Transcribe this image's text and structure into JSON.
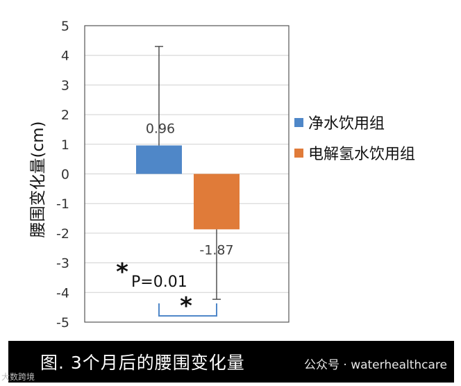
{
  "chart_data": {
    "type": "bar",
    "categories": [
      "净水饮用组",
      "电解氢水饮用组"
    ],
    "series": [
      {
        "name": "净水饮用组",
        "value": 0.96,
        "error_upper": 4.3,
        "color": "#4f87c8"
      },
      {
        "name": "电解氢水饮用组",
        "value": -1.87,
        "error_lower": -4.23,
        "color": "#e07b39"
      }
    ],
    "data_labels": [
      "0.96",
      "-1.87"
    ],
    "ylabel": "腰围变化量(cm)",
    "ylim": [
      -5,
      5
    ],
    "yticks": [
      5,
      4,
      3,
      2,
      1,
      0,
      -1,
      -2,
      -3,
      -4,
      -5
    ],
    "grid": true,
    "legend_position": "right",
    "significance": {
      "star": "*",
      "text": "P=0.01"
    }
  },
  "caption": "图.  3个月后的腰围变化量",
  "watermark": "公众号 · waterhealthcare",
  "corner_mark": "大数跨境"
}
